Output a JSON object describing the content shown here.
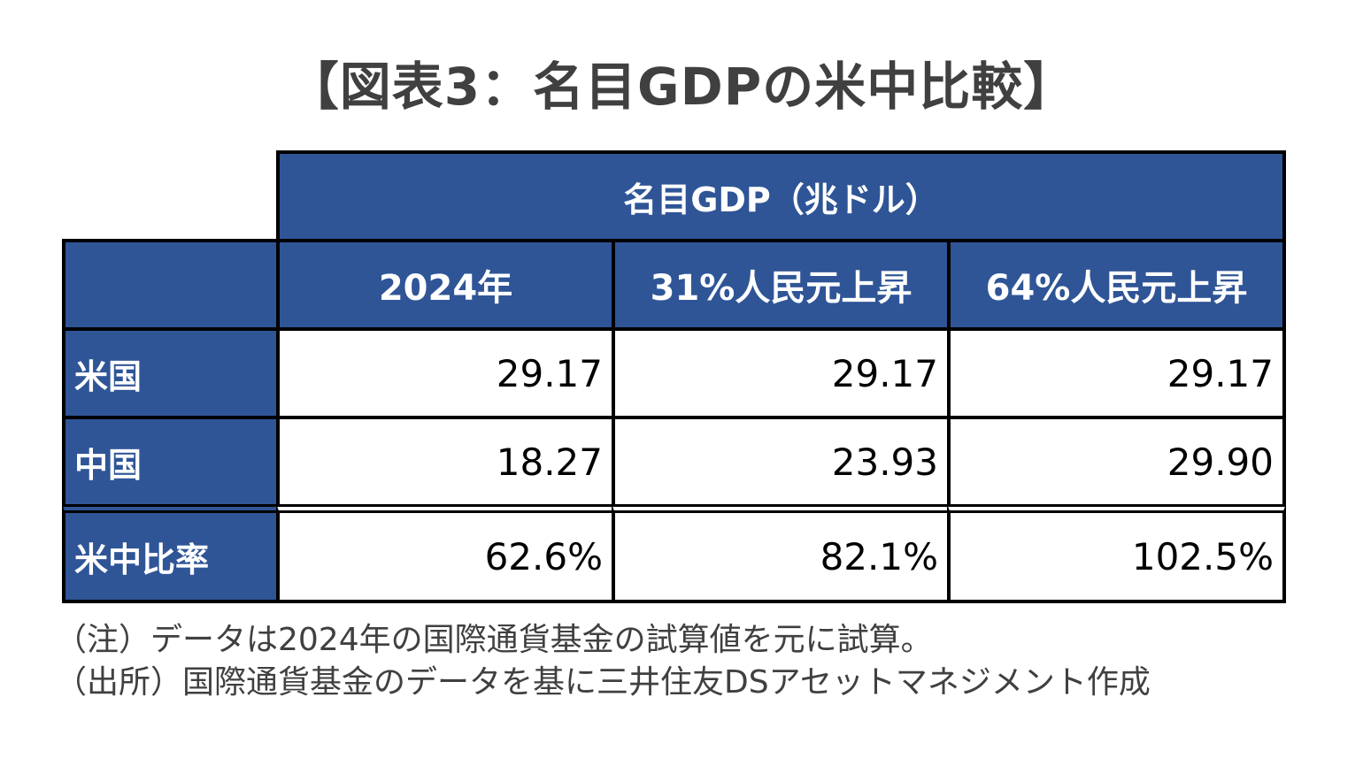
{
  "title": "【図表3：名目GDPの米中比較】",
  "notes": [
    "（注）データは2024年の国際通貨基金の試算値を元に試算。",
    "（出所）国際通貨基金のデータを基に三井住友DSアセットマネジメント作成"
  ],
  "chart_data": {
    "type": "table",
    "title": "【図表3：名目GDPの米中比較】",
    "header_group": "名目GDP（兆ドル）",
    "columns": [
      "2024年",
      "31%人民元上昇",
      "64%人民元上昇"
    ],
    "rows": [
      {
        "label": "米国",
        "values": [
          "29.17",
          "29.17",
          "29.17"
        ]
      },
      {
        "label": "中国",
        "values": [
          "18.27",
          "23.93",
          "29.90"
        ]
      },
      {
        "label": "米中比率",
        "values": [
          "62.6%",
          "82.1%",
          "102.5%"
        ]
      }
    ]
  },
  "colors": {
    "header_bg": "#2f5597",
    "header_text": "#ffffff",
    "border": "#000000",
    "title_text": "#404040"
  }
}
